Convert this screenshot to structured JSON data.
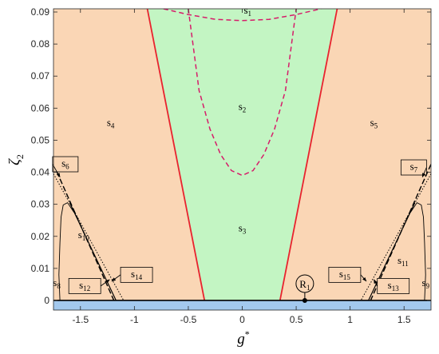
{
  "chart_data": {
    "type": "region-map",
    "xlabel": {
      "base": "g",
      "sup": "*"
    },
    "ylabel": {
      "base": "ζ",
      "sub": "2"
    },
    "xlim": [
      -1.75,
      1.75
    ],
    "ylim": [
      -0.003,
      0.091
    ],
    "xticks": [
      -1.5,
      -1,
      -0.5,
      0,
      0.5,
      1,
      1.5
    ],
    "xtick_labels": [
      "-1.5",
      "-1",
      "-0.5",
      "0",
      "0.5",
      "1",
      "1.5"
    ],
    "yticks": [
      0,
      0.01,
      0.02,
      0.03,
      0.04,
      0.05,
      0.06,
      0.07,
      0.08,
      0.09
    ],
    "ytick_labels": [
      "0",
      "0.01",
      "0.02",
      "0.03",
      "0.04",
      "0.05",
      "0.06",
      "0.07",
      "0.08",
      "0.09"
    ],
    "colors": {
      "outer_region": "#fad6b5",
      "central_region": "#c3f5c3",
      "bottom_band": "#a3c9ee",
      "boundary": "#e8232e",
      "dashed_boundary": "#d61c6a",
      "curves": "#000000"
    },
    "boundaries": {
      "left_red_line": [
        [
          -0.35,
          0
        ],
        [
          -0.88,
          0.091
        ]
      ],
      "right_red_line": [
        [
          0.35,
          0
        ],
        [
          0.88,
          0.091
        ]
      ],
      "dashed_upper": {
        "x": [
          -0.73,
          -0.5,
          -0.25,
          0,
          0.25,
          0.5,
          0.73
        ],
        "y": [
          0.091,
          0.0892,
          0.0877,
          0.0873,
          0.0877,
          0.0892,
          0.091
        ]
      },
      "dashed_lower": {
        "x": [
          -0.5,
          -0.4,
          -0.3,
          -0.2,
          -0.1,
          0,
          0.1,
          0.2,
          0.3,
          0.4,
          0.5
        ],
        "y": [
          0.091,
          0.0655,
          0.0535,
          0.0455,
          0.0405,
          0.039,
          0.0405,
          0.0455,
          0.0535,
          0.0655,
          0.091
        ]
      },
      "left_dashdot_line": [
        [
          -1.75,
          0.0425
        ],
        [
          -1.19,
          0
        ]
      ],
      "left_solid_line": [
        [
          -1.6,
          0.0305
        ],
        [
          -1.17,
          0
        ]
      ],
      "left_dotted_line": [
        [
          -1.75,
          0.0395
        ],
        [
          -1.1,
          0
        ]
      ],
      "left_loop": {
        "x": [
          -1.56,
          -1.62,
          -1.66,
          -1.68,
          -1.69,
          -1.7,
          -1.69
        ],
        "y": [
          0.0275,
          0.0305,
          0.0298,
          0.026,
          0.018,
          0.008,
          0.0
        ]
      },
      "right_dashdot_line": [
        [
          1.75,
          0.0425
        ],
        [
          1.19,
          0
        ]
      ],
      "right_solid_line": [
        [
          1.6,
          0.0305
        ],
        [
          1.17,
          0
        ]
      ],
      "right_dotted_line": [
        [
          1.75,
          0.0395
        ],
        [
          1.1,
          0
        ]
      ],
      "right_loop": {
        "x": [
          1.56,
          1.62,
          1.66,
          1.68,
          1.69,
          1.7,
          1.69
        ],
        "y": [
          0.0275,
          0.0305,
          0.0298,
          0.026,
          0.018,
          0.008,
          0.0
        ]
      }
    },
    "point": {
      "label": "R",
      "sub": "1",
      "x": 0.58,
      "y": 0
    },
    "region_labels": [
      {
        "id": "s1",
        "base": "s",
        "sub": "1",
        "x": 0.05,
        "y": 0.0895
      },
      {
        "id": "s2",
        "base": "s",
        "sub": "2",
        "x": 0.0,
        "y": 0.0595
      },
      {
        "id": "s3",
        "base": "s",
        "sub": "3",
        "x": 0.0,
        "y": 0.0215
      },
      {
        "id": "s4",
        "base": "s",
        "sub": "4",
        "x": -1.22,
        "y": 0.0545
      },
      {
        "id": "s5",
        "base": "s",
        "sub": "5",
        "x": 1.22,
        "y": 0.0545
      },
      {
        "id": "s8",
        "base": "s",
        "sub": "8",
        "x": -1.72,
        "y": 0.0045
      },
      {
        "id": "s9",
        "base": "s",
        "sub": "9",
        "x": 1.7,
        "y": 0.0045
      },
      {
        "id": "s10",
        "base": "s",
        "sub": "10",
        "x": -1.47,
        "y": 0.0195
      },
      {
        "id": "s11",
        "base": "s",
        "sub": "11",
        "x": 1.49,
        "y": 0.0115
      }
    ],
    "boxed_labels": [
      {
        "id": "s6",
        "base": "s",
        "sub": "6",
        "box": [
          -1.64,
          0.0425
        ],
        "arrow_to": [
          -1.69,
          0.0385
        ]
      },
      {
        "id": "s7",
        "base": "s",
        "sub": "7",
        "box": [
          1.59,
          0.0415
        ],
        "arrow_to": [
          1.67,
          0.0385
        ]
      },
      {
        "id": "s12",
        "base": "s",
        "sub": "12",
        "box": [
          -1.46,
          0.0045
        ],
        "arrow_to": [
          -1.23,
          0.0065
        ]
      },
      {
        "id": "s13",
        "base": "s",
        "sub": "13",
        "box": [
          1.4,
          0.0045
        ],
        "arrow_to": [
          1.22,
          0.0065
        ]
      },
      {
        "id": "s14",
        "base": "s",
        "sub": "14",
        "box": [
          -0.98,
          0.008
        ],
        "arrow_to": [
          -1.21,
          0.006
        ]
      },
      {
        "id": "s15",
        "base": "s",
        "sub": "15",
        "box": [
          0.95,
          0.008
        ],
        "arrow_to": [
          1.15,
          0.006
        ]
      }
    ]
  }
}
